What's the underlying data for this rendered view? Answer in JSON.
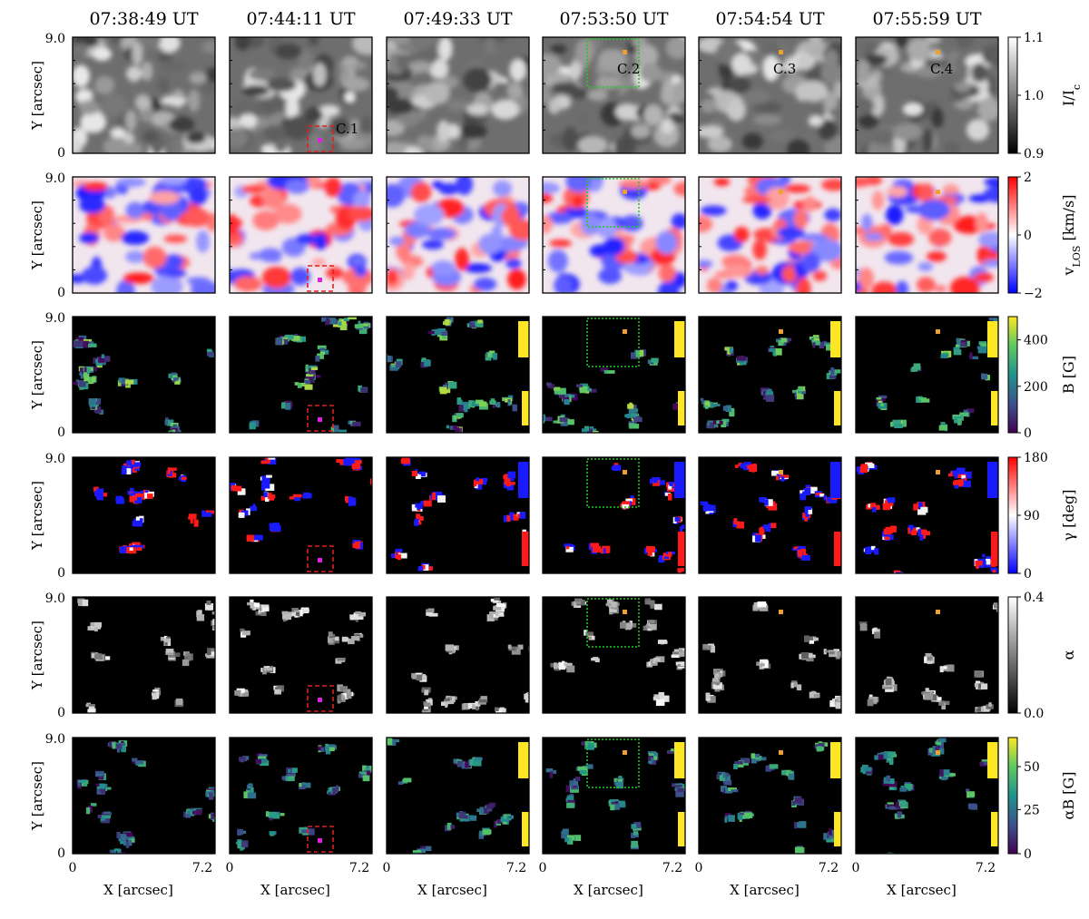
{
  "figure": {
    "timestamps": [
      "07:38:49 UT",
      "07:44:11 UT",
      "07:49:33 UT",
      "07:53:50 UT",
      "07:54:54 UT",
      "07:55:59 UT"
    ],
    "x_axis": {
      "label": "X [arcsec]",
      "ticks": [
        "0",
        "7.2"
      ]
    },
    "y_axis": {
      "label": "Y [arcsec]",
      "ticks": [
        "9.0",
        "0"
      ]
    },
    "rows": [
      {
        "quantity": "I/I_c",
        "label": "I/I",
        "label_sub": "c",
        "cmap": "gray",
        "ticks": [
          "1.1",
          "1.0",
          "0.9"
        ],
        "range": [
          0.9,
          1.1
        ]
      },
      {
        "quantity": "v_LOS [km/s]",
        "label": "v",
        "label_sub": "LOS",
        "label_suffix": " [km/s]",
        "cmap": "bwr",
        "ticks": [
          "2",
          "0",
          "−2"
        ],
        "range": [
          -2,
          2
        ]
      },
      {
        "quantity": "B [G]",
        "label": "B [G]",
        "label_sub": "",
        "cmap": "viridis",
        "ticks": [
          "400",
          "200",
          "0"
        ],
        "range": [
          0,
          500
        ]
      },
      {
        "quantity": "γ [deg]",
        "label": "γ [deg]",
        "label_sub": "",
        "cmap": "bwr_rev",
        "ticks": [
          "180",
          "90",
          "0"
        ],
        "range": [
          0,
          180
        ]
      },
      {
        "quantity": "α",
        "label": "α",
        "label_sub": "",
        "cmap": "gray",
        "ticks": [
          "0.4",
          "0.0"
        ],
        "range": [
          0,
          0.4
        ]
      },
      {
        "quantity": "αB [G]",
        "label": "αB [G]",
        "label_sub": "",
        "cmap": "viridis",
        "ticks": [
          "50",
          "25",
          "0"
        ],
        "range": [
          0,
          65
        ]
      }
    ],
    "annotations": {
      "c1": {
        "label": "C.1",
        "color": "#e020e0",
        "column": 1
      },
      "c2": {
        "label": "C.2",
        "color": "#f0a030",
        "column": 3
      },
      "c3": {
        "label": "C.3",
        "color": "#f0a030",
        "column": 4
      },
      "c4": {
        "label": "C.4",
        "color": "#f0a030",
        "column": 5
      },
      "red_box_color": "#e02020",
      "green_box_color": "#22cc22"
    }
  }
}
